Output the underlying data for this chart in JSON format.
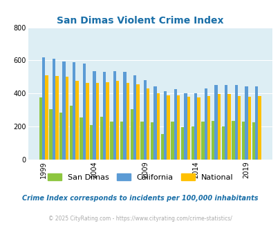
{
  "title": "San Dimas Violent Crime Index",
  "years": [
    1999,
    2000,
    2001,
    2002,
    2003,
    2004,
    2005,
    2006,
    2007,
    2008,
    2009,
    2010,
    2011,
    2012,
    2013,
    2014,
    2015,
    2016,
    2017,
    2018,
    2019,
    2020
  ],
  "san_dimas": [
    375,
    305,
    285,
    325,
    255,
    210,
    260,
    230,
    230,
    305,
    230,
    225,
    155,
    230,
    195,
    200,
    230,
    235,
    200,
    235,
    230,
    225
  ],
  "california": [
    620,
    610,
    595,
    590,
    580,
    535,
    530,
    535,
    530,
    510,
    480,
    445,
    415,
    425,
    400,
    400,
    430,
    450,
    450,
    450,
    445,
    445
  ],
  "national": [
    510,
    505,
    500,
    475,
    465,
    465,
    470,
    475,
    465,
    455,
    430,
    400,
    390,
    390,
    380,
    375,
    385,
    395,
    395,
    385,
    380,
    385
  ],
  "ylim": [
    0,
    800
  ],
  "yticks": [
    0,
    200,
    400,
    600,
    800
  ],
  "bar_width": 0.3,
  "color_sandimas": "#8dc63f",
  "color_california": "#5b9bd5",
  "color_national": "#ffc000",
  "plot_bg": "#ddeef4",
  "fig_bg": "#ffffff",
  "grid_color": "#ffffff",
  "title_color": "#1a6fa8",
  "legend_labels": [
    "San Dimas",
    "California",
    "National"
  ],
  "footnote1": "Crime Index corresponds to incidents per 100,000 inhabitants",
  "footnote2": "© 2025 CityRating.com - https://www.cityrating.com/crime-statistics/",
  "xlabel_years": [
    1999,
    2004,
    2009,
    2014,
    2019
  ]
}
